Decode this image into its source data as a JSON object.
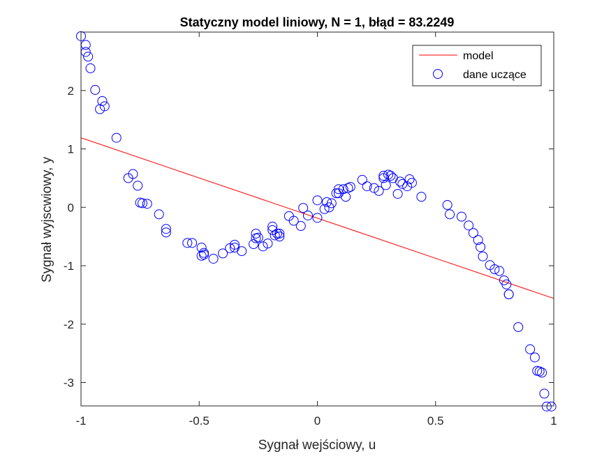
{
  "chart_data": {
    "type": "scatter",
    "title": "Statyczny model liniowy, N = 1, błąd = 83.2249",
    "xlabel": "Sygnał wejściowy, u",
    "ylabel": "Sygnał wyjscwiowy, y",
    "xlim": [
      -1,
      1
    ],
    "ylim": [
      -3.4,
      3
    ],
    "xticks": [
      -1,
      -0.5,
      0,
      0.5,
      1
    ],
    "xtick_labels": [
      "-1",
      "-0.5",
      "0",
      "0.5",
      "1"
    ],
    "yticks": [
      -3,
      -2,
      -1,
      0,
      1,
      2
    ],
    "ytick_labels": [
      "-3",
      "-2",
      "-1",
      "0",
      "1",
      "2"
    ],
    "grid": false,
    "legend_position": "top-right",
    "series": [
      {
        "name": "model",
        "kind": "line",
        "color": "#ff0000",
        "x": [
          -1,
          1
        ],
        "y": [
          1.19,
          -1.56
        ]
      },
      {
        "name": "dane uczące",
        "kind": "scatter",
        "marker": "circle-open",
        "color": "#0000ff",
        "x": [
          -1.0,
          -0.98,
          -0.98,
          -0.97,
          -0.96,
          -0.94,
          -0.92,
          -0.91,
          -0.9,
          -0.85,
          -0.8,
          -0.78,
          -0.76,
          -0.75,
          -0.74,
          -0.72,
          -0.67,
          -0.64,
          -0.64,
          -0.55,
          -0.53,
          -0.49,
          -0.49,
          -0.48,
          -0.48,
          -0.44,
          -0.4,
          -0.37,
          -0.35,
          -0.35,
          -0.32,
          -0.27,
          -0.26,
          -0.26,
          -0.25,
          -0.23,
          -0.21,
          -0.19,
          -0.19,
          -0.18,
          -0.17,
          -0.16,
          -0.16,
          -0.12,
          -0.1,
          -0.07,
          -0.06,
          -0.04,
          0.0,
          0.0,
          0.03,
          0.04,
          0.05,
          0.06,
          0.08,
          0.09,
          0.09,
          0.11,
          0.12,
          0.13,
          0.14,
          0.19,
          0.21,
          0.24,
          0.26,
          0.28,
          0.28,
          0.29,
          0.3,
          0.31,
          0.32,
          0.34,
          0.35,
          0.36,
          0.38,
          0.39,
          0.4,
          0.44,
          0.55,
          0.56,
          0.61,
          0.64,
          0.66,
          0.68,
          0.69,
          0.7,
          0.73,
          0.75,
          0.77,
          0.79,
          0.8,
          0.81,
          0.81,
          0.85,
          0.9,
          0.92,
          0.93,
          0.94,
          0.95,
          0.96,
          0.97,
          0.99
        ],
        "y": [
          2.93,
          2.78,
          2.66,
          2.58,
          2.38,
          2.01,
          1.68,
          1.82,
          1.73,
          1.19,
          0.5,
          0.57,
          0.37,
          0.08,
          0.07,
          0.06,
          -0.12,
          -0.37,
          -0.43,
          -0.61,
          -0.61,
          -0.69,
          -0.83,
          -0.81,
          -0.78,
          -0.88,
          -0.79,
          -0.7,
          -0.69,
          -0.64,
          -0.75,
          -0.63,
          -0.53,
          -0.45,
          -0.52,
          -0.67,
          -0.62,
          -0.33,
          -0.39,
          -0.48,
          -0.45,
          -0.45,
          -0.5,
          -0.15,
          -0.23,
          -0.32,
          -0.01,
          -0.14,
          0.12,
          -0.18,
          -0.03,
          0.09,
          0.0,
          0.07,
          0.24,
          0.31,
          0.24,
          0.31,
          0.18,
          0.33,
          0.35,
          0.47,
          0.36,
          0.33,
          0.28,
          0.54,
          0.5,
          0.38,
          0.56,
          0.54,
          0.5,
          0.23,
          0.44,
          0.4,
          0.36,
          0.48,
          0.42,
          0.18,
          0.04,
          -0.12,
          -0.16,
          -0.31,
          -0.44,
          -0.56,
          -0.68,
          -0.84,
          -0.99,
          -1.06,
          -1.09,
          -1.25,
          -1.32,
          -1.49,
          -1.49,
          -2.05,
          -2.43,
          -2.57,
          -2.8,
          -2.81,
          -2.83,
          -3.19,
          -3.41,
          -3.41
        ]
      }
    ]
  }
}
